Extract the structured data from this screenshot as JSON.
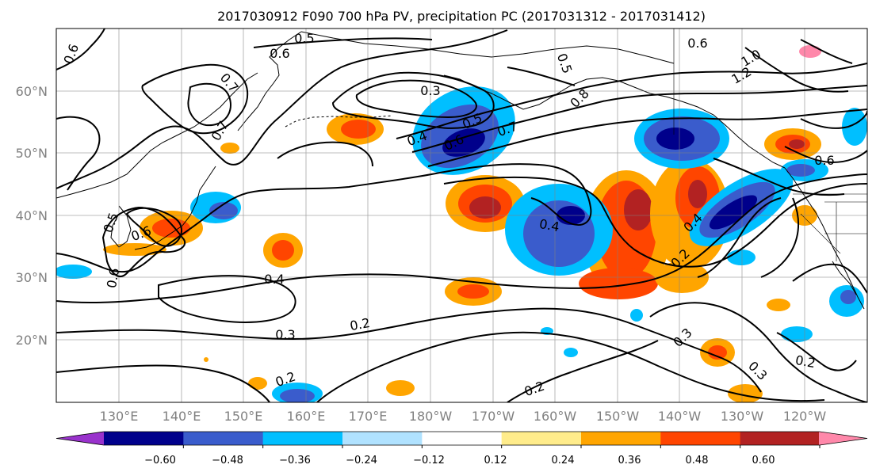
{
  "title": "2017030912 F090 700 hPa PV, precipitation PC (2017031312 - 2017031412)",
  "lat_labels": [
    "60°N",
    "50°N",
    "40°N",
    "30°N",
    "20°N"
  ],
  "lon_labels": [
    "130°E",
    "140°E",
    "150°E",
    "160°E",
    "170°E",
    "180°W",
    "170°W",
    "160°W",
    "150°W",
    "140°W",
    "130°W",
    "120°W"
  ],
  "colorbar": {
    "tick_labels": [
      "−0.60",
      "−0.48",
      "−0.36",
      "−0.24",
      "−0.12",
      "0.12",
      "0.24",
      "0.36",
      "0.48",
      "0.60"
    ],
    "colors": [
      "#9932cc",
      "#00008b",
      "#3a5ccc",
      "#00bfff",
      "#b0e2ff",
      "#ffffff",
      "#ffec8b",
      "#ffa500",
      "#ff4500",
      "#b22222",
      "#ff88aa"
    ]
  },
  "contour_labels": [
    "0.5",
    "0.6",
    "0.6",
    "0.6",
    "0.7",
    "0.7",
    "0.3",
    "0.4",
    "0.6",
    "0.5",
    "0.7",
    "0.8",
    "0.5",
    "1.0",
    "1.2",
    "0.6",
    "0.6",
    "0.5",
    "0.6",
    "0.4",
    "0.4",
    "0.4",
    "0.3",
    "0.2",
    "0.2",
    "0.3",
    "0.3",
    "0.2",
    "0.2",
    "0.2"
  ]
}
